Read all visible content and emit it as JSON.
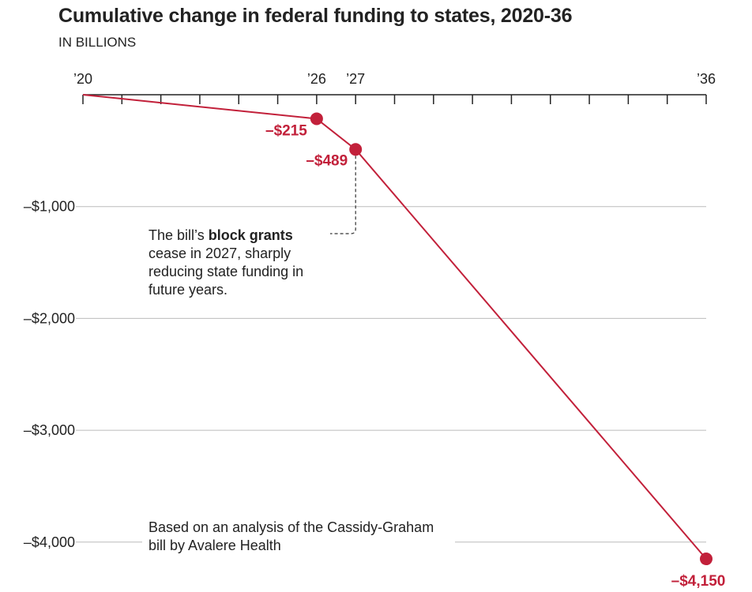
{
  "title": "Cumulative change in federal funding to states, 2020-36",
  "subtitle": "IN BILLIONS",
  "colors": {
    "line": "#c2203a",
    "grid": "#bbbbbb",
    "axis": "#222222",
    "text": "#222222"
  },
  "chart_data": {
    "type": "line",
    "title": "Cumulative change in federal funding to states, 2020-36",
    "subtitle": "IN BILLIONS",
    "x_tick_labels": [
      "’20",
      "’26",
      "’27",
      "’36"
    ],
    "y_tick_labels": [
      "–$1,000",
      "–$2,000",
      "–$3,000",
      "–$4,000"
    ],
    "y_tick_values": [
      -1000,
      -2000,
      -3000,
      -4000
    ],
    "x_axis_position": "top",
    "xlim": [
      2020,
      2036
    ],
    "ylim": [
      -4400,
      0
    ],
    "grid": true,
    "series": [
      {
        "x": [
          2020,
          2026,
          2027,
          2036
        ],
        "y": [
          0,
          -215,
          -489,
          -4150
        ],
        "markers": [
          2026,
          2027,
          2036
        ],
        "labels": [
          "",
          "–$215",
          "–$489",
          "–$4,150"
        ]
      }
    ],
    "annotations": [
      {
        "before": "The bill’s ",
        "bold": "block grants",
        "after": " cease in 2027, sharply reducing state funding in future years.",
        "target_x": 2027
      },
      {
        "text": "Based on an analysis of the Cassidy-Graham bill by Avalere Health"
      }
    ]
  }
}
